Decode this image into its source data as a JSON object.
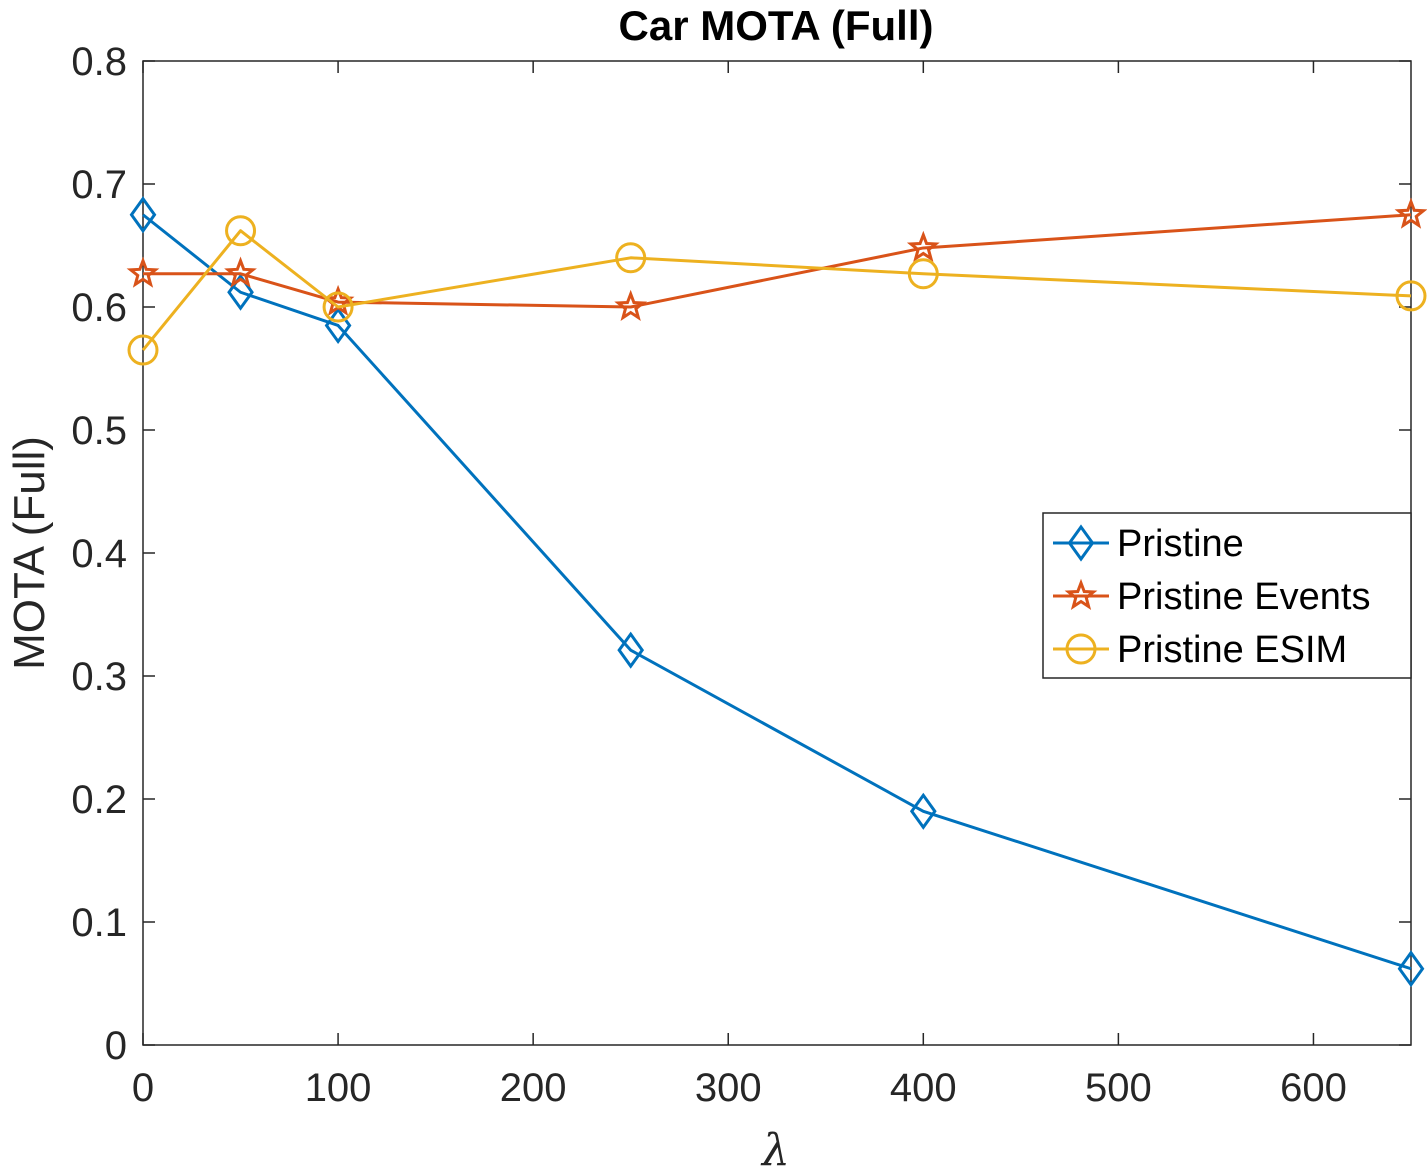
{
  "chart_data": {
    "type": "line",
    "title": "Car MOTA (Full)",
    "xlabel": "λ",
    "ylabel": "MOTA (Full)",
    "xlim": [
      0,
      650
    ],
    "ylim": [
      0,
      0.8
    ],
    "xticks": [
      0,
      100,
      200,
      300,
      400,
      500,
      600
    ],
    "yticks": [
      0,
      0.1,
      0.2,
      0.3,
      0.4,
      0.5,
      0.6,
      0.7,
      0.8
    ],
    "xtick_labels": [
      "0",
      "100",
      "200",
      "300",
      "400",
      "500",
      "600"
    ],
    "ytick_labels": [
      "0",
      "0.1",
      "0.2",
      "0.3",
      "0.4",
      "0.5",
      "0.6",
      "0.7",
      "0.8"
    ],
    "grid": false,
    "legend_position": "right",
    "x": [
      0,
      50,
      100,
      250,
      400,
      650
    ],
    "series": [
      {
        "name": "Pristine",
        "color": "#0072BD",
        "marker": "diamond",
        "values": [
          0.675,
          0.612,
          0.585,
          0.321,
          0.19,
          0.062
        ]
      },
      {
        "name": "Pristine Events",
        "color": "#D95319",
        "marker": "star",
        "values": [
          0.627,
          0.627,
          0.604,
          0.6,
          0.648,
          0.675
        ]
      },
      {
        "name": "Pristine ESIM",
        "color": "#EDB120",
        "marker": "circle",
        "values": [
          0.565,
          0.662,
          0.6,
          0.64,
          0.627,
          0.609
        ]
      }
    ]
  }
}
